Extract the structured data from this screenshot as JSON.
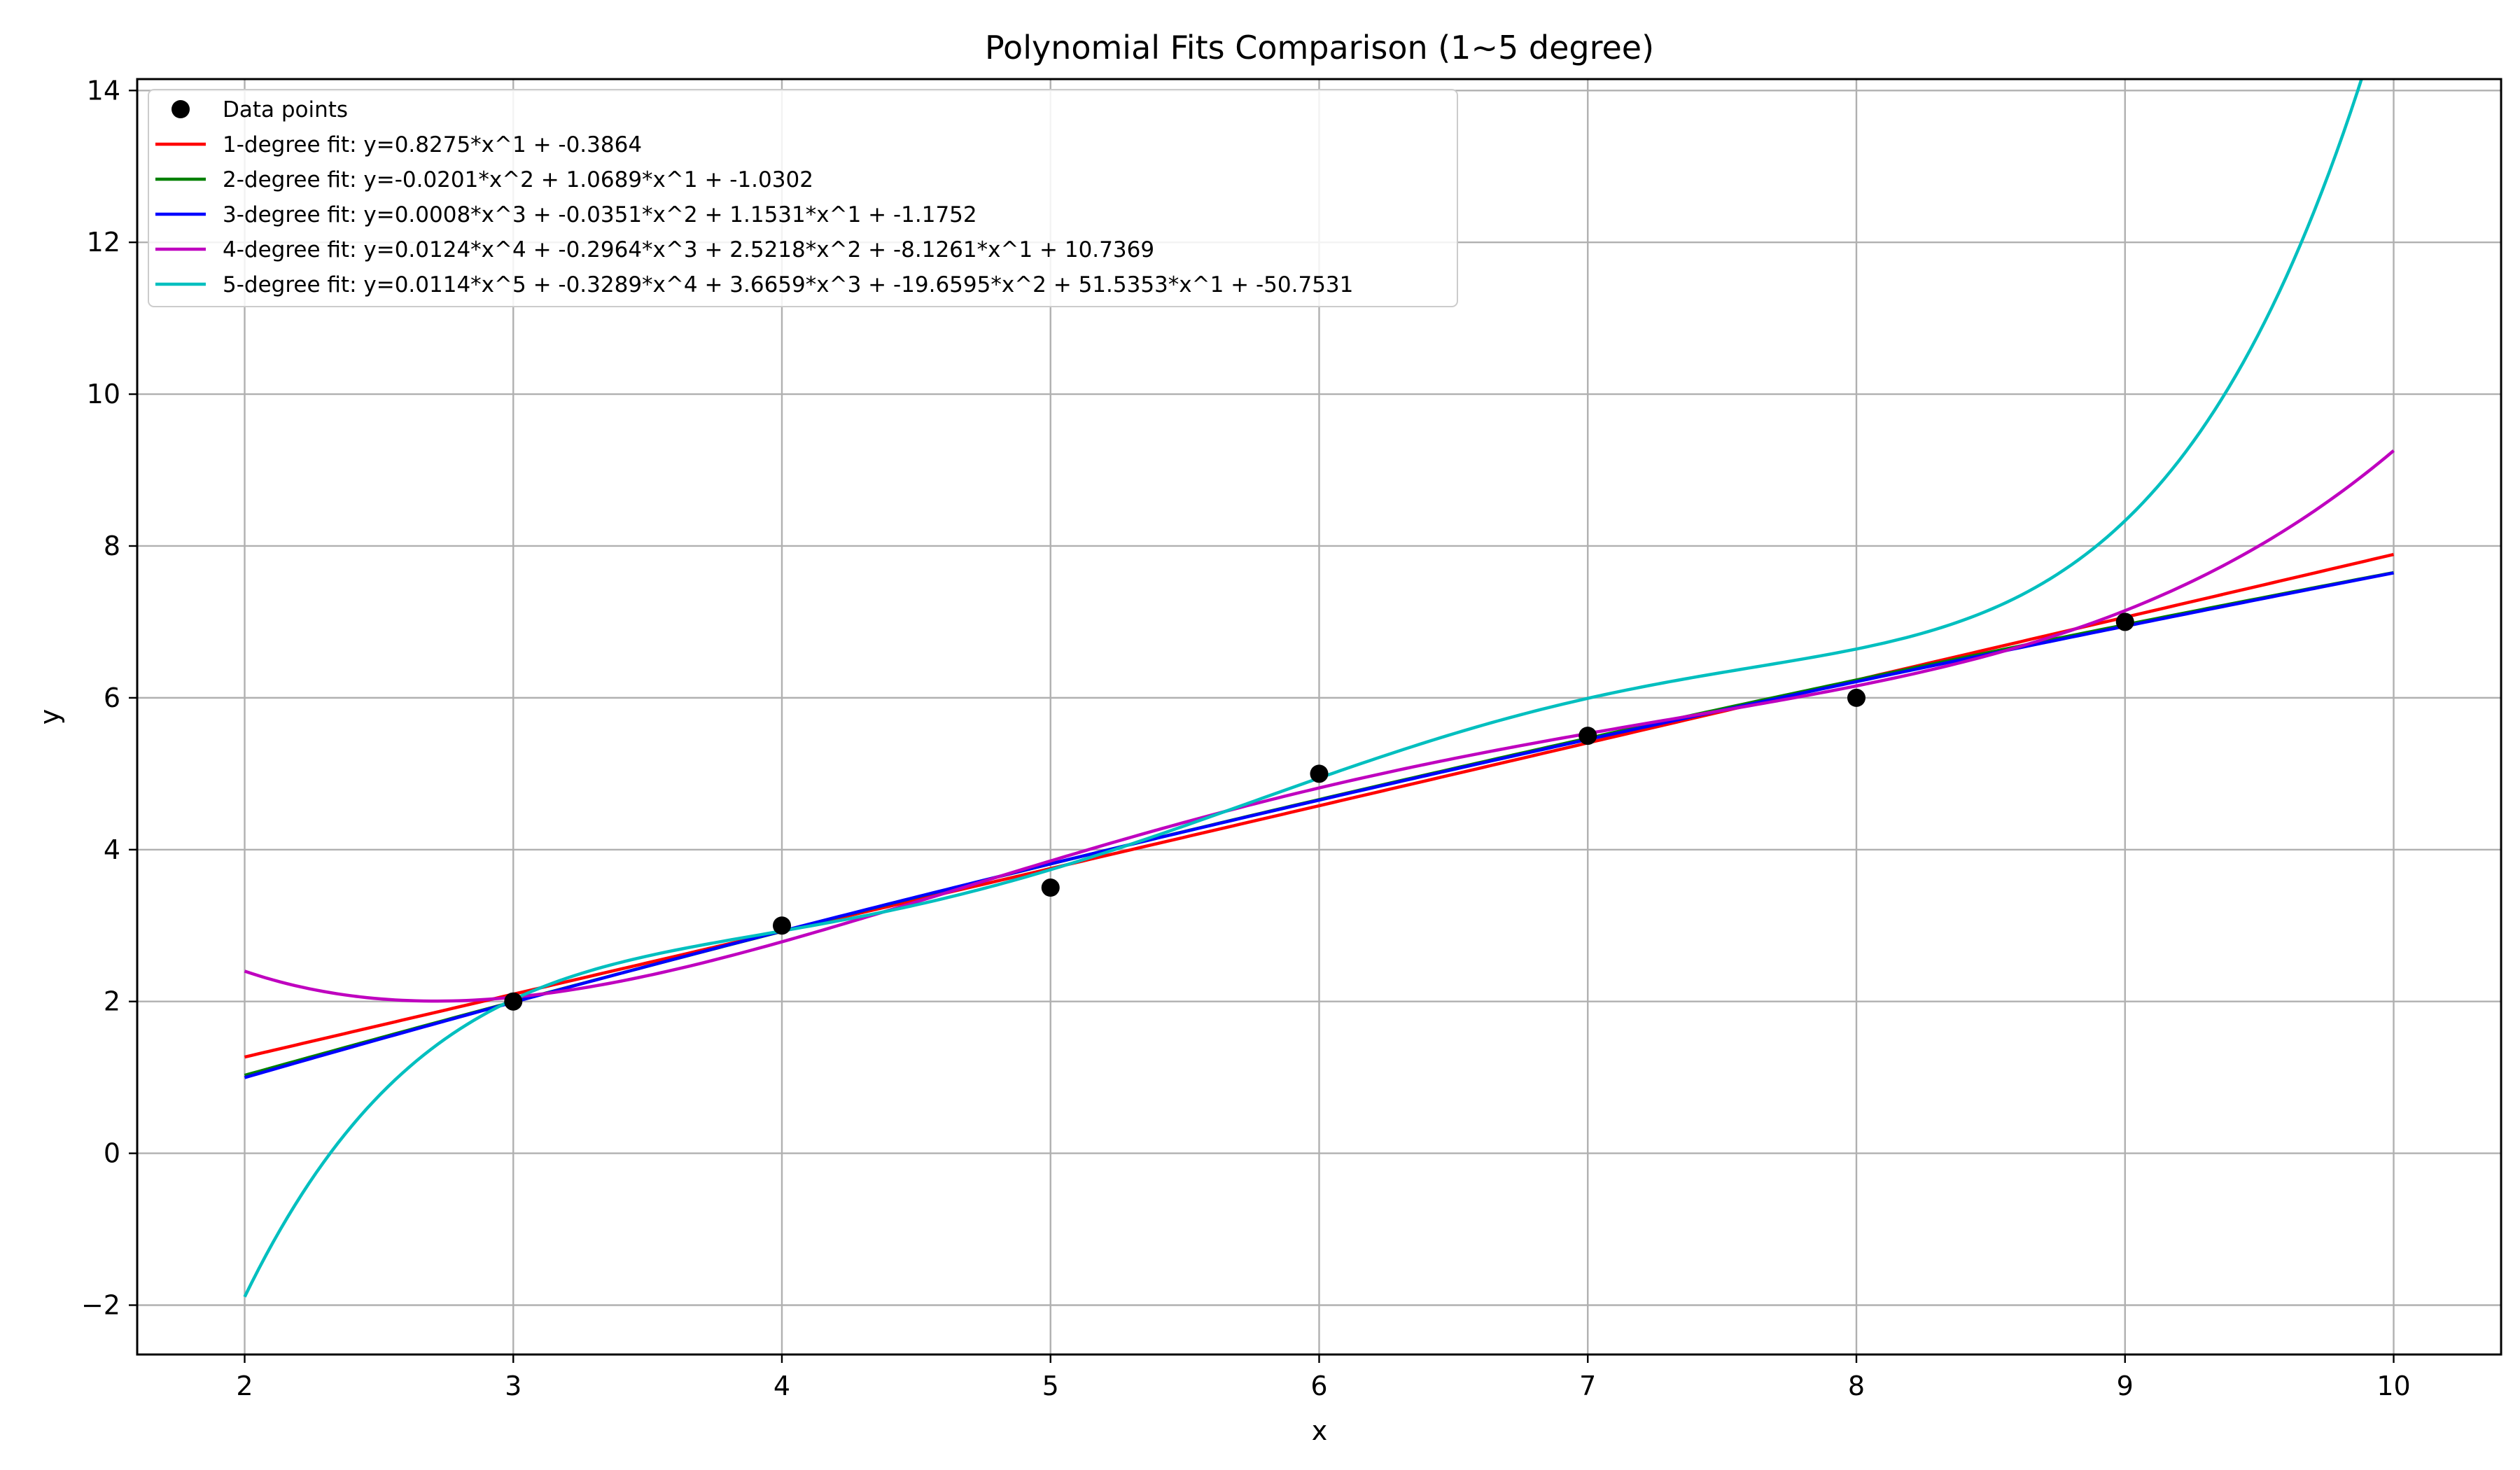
{
  "chart_data": {
    "type": "line",
    "title": "Polynomial Fits Comparison (1~5 degree)",
    "xlabel": "x",
    "ylabel": "y",
    "xlim": [
      1.6,
      10.4
    ],
    "ylim": [
      -2.65,
      14.15
    ],
    "xticks": [
      2,
      3,
      4,
      5,
      6,
      7,
      8,
      9,
      10
    ],
    "yticks": [
      -2,
      0,
      2,
      4,
      6,
      8,
      10,
      12,
      14
    ],
    "xtick_labels": [
      "2",
      "3",
      "4",
      "5",
      "6",
      "7",
      "8",
      "9",
      "10"
    ],
    "ytick_labels": [
      "−2",
      "0",
      "2",
      "4",
      "6",
      "8",
      "10",
      "12",
      "14"
    ],
    "grid": true,
    "legend_position": "top-left",
    "points": {
      "name": "Data points",
      "color": "#000000",
      "x": [
        3,
        4,
        5,
        6,
        7,
        8,
        9
      ],
      "y": [
        2.0,
        3.0,
        3.5,
        5.0,
        5.5,
        6.0,
        7.0
      ]
    },
    "series": [
      {
        "name": "1-degree fit: y=0.8275*x^1 + -0.3864",
        "color": "#ff0000",
        "coefficients": [
          0.8275,
          -0.3864
        ]
      },
      {
        "name": "2-degree fit: y=-0.0201*x^2 + 1.0689*x^1 + -1.0302",
        "color": "#008000",
        "coefficients": [
          -0.0201,
          1.0689,
          -1.0302
        ]
      },
      {
        "name": "3-degree fit: y=0.0008*x^3 + -0.0351*x^2 + 1.1531*x^1 + -1.1752",
        "color": "#0000ff",
        "coefficients": [
          0.0008,
          -0.0351,
          1.1531,
          -1.1752
        ]
      },
      {
        "name": "4-degree fit: y=0.0124*x^4 + -0.2964*x^3 + 2.5218*x^2 + -8.1261*x^1 + 10.7369",
        "color": "#bf00bf",
        "coefficients": [
          0.0124,
          -0.2964,
          2.5218,
          -8.1261,
          10.7369
        ]
      },
      {
        "name": "5-degree fit: y=0.0114*x^5 + -0.3289*x^4 + 3.6659*x^3 + -19.6595*x^2 + 51.5353*x^1 + -50.7531",
        "color": "#00bfbf",
        "coefficients": [
          0.0114,
          -0.3289,
          3.6659,
          -19.6595,
          51.5353,
          -50.7531
        ]
      }
    ]
  }
}
